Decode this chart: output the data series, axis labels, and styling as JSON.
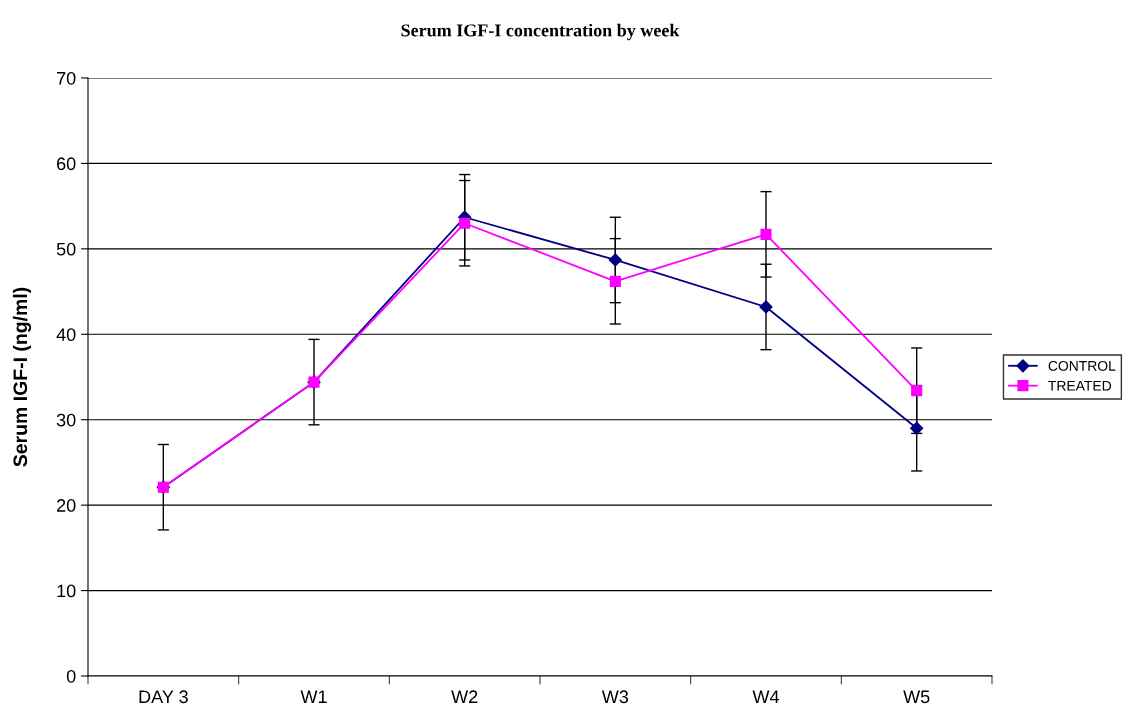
{
  "chart_data": {
    "type": "line",
    "title": "Serum IGF-I concentration by week",
    "ylabel": "Serum IGF-I (ng/ml)",
    "categories": [
      "DAY 3",
      "W1",
      "W2",
      "W3",
      "W4",
      "W5"
    ],
    "series": [
      {
        "name": "CONTROL",
        "color": "#000080",
        "marker": "diamond",
        "values": [
          22.1,
          34.4,
          53.7,
          48.7,
          43.2,
          29.0
        ],
        "errors": [
          5,
          5,
          5,
          5,
          5,
          5
        ]
      },
      {
        "name": "TREATED",
        "color": "#ff00ff",
        "marker": "square",
        "values": [
          22.1,
          34.4,
          53.0,
          46.2,
          51.7,
          33.4
        ],
        "errors": [
          null,
          null,
          5,
          5,
          5,
          5
        ]
      }
    ],
    "ylim": [
      0,
      70
    ],
    "yticks": [
      0,
      10,
      20,
      30,
      40,
      50,
      60,
      70
    ],
    "grid": "y",
    "legend": "right",
    "line_style": "solid"
  }
}
